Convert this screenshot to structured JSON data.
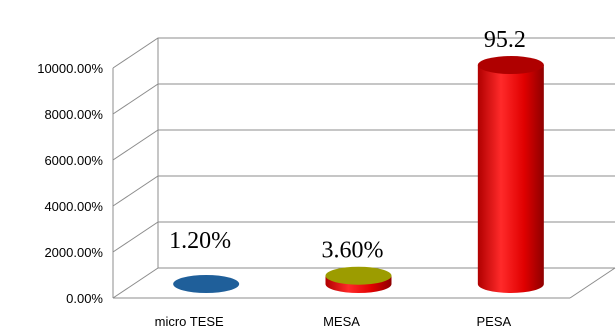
{
  "chart_data": {
    "type": "bar",
    "style": "3d-cylinder",
    "categories": [
      "micro TESE",
      "MESA",
      "PESA"
    ],
    "values": [
      1.2,
      3.6,
      95.2
    ],
    "data_labels": [
      "1.20%",
      "3.60%",
      "95.2"
    ],
    "colors": [
      "#1f5f9a",
      "#c8c800",
      "#e00000"
    ],
    "y_ticks": [
      "0.00%",
      "2000.00%",
      "4000.00%",
      "6000.00%",
      "8000.00%",
      "10000.00%"
    ],
    "ylim": [
      0,
      100
    ],
    "grid": true,
    "legend": false
  }
}
